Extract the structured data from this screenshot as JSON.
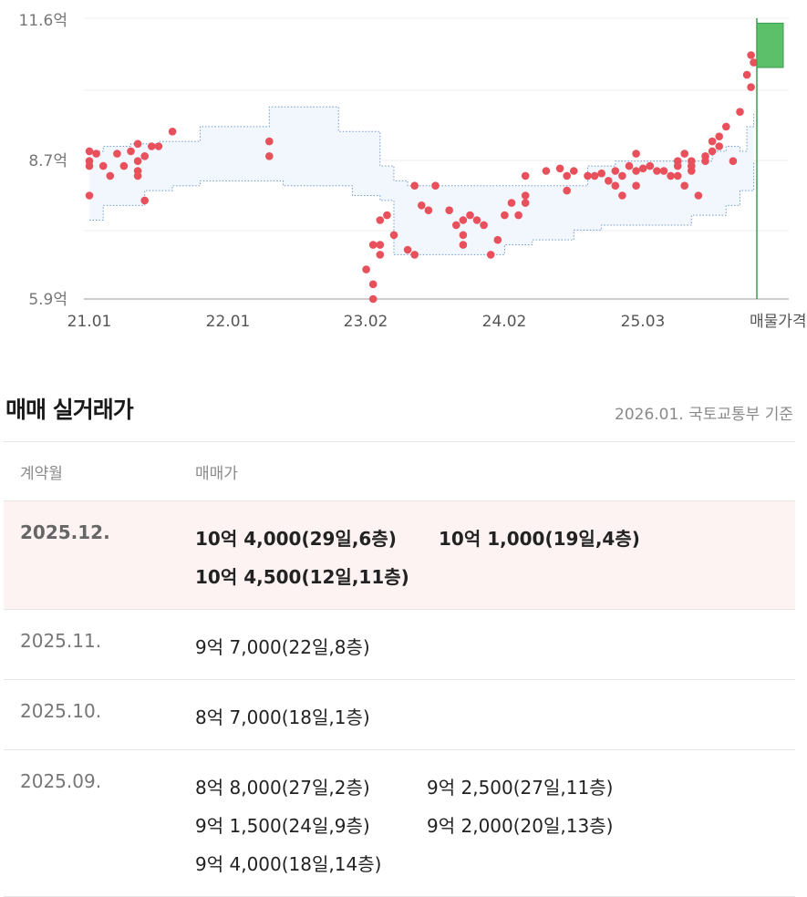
{
  "chart_data": {
    "type": "scatter",
    "y_ticks": [
      "11.6억",
      "8.7억",
      "5.9억"
    ],
    "x_ticks": [
      "21.01",
      "22.01",
      "23.02",
      "24.02",
      "25.03",
      "매물가격"
    ],
    "ylim": [
      5.9,
      11.6
    ],
    "listing_price_range": [
      10.6,
      11.5
    ],
    "band_upper": [
      [
        21.0,
        8.9
      ],
      [
        21.1,
        9.0
      ],
      [
        21.3,
        9.05
      ],
      [
        21.5,
        9.1
      ],
      [
        21.8,
        9.4
      ],
      [
        22.1,
        9.4
      ],
      [
        22.3,
        9.8
      ],
      [
        22.7,
        9.8
      ],
      [
        22.8,
        9.3
      ],
      [
        23.0,
        9.3
      ],
      [
        23.1,
        8.6
      ],
      [
        23.2,
        8.3
      ],
      [
        23.3,
        8.2
      ],
      [
        23.4,
        8.2
      ],
      [
        23.6,
        8.2
      ],
      [
        23.9,
        8.2
      ],
      [
        24.0,
        8.2
      ],
      [
        24.2,
        8.2
      ],
      [
        24.4,
        8.2
      ],
      [
        24.6,
        8.6
      ],
      [
        24.8,
        8.7
      ],
      [
        25.0,
        8.7
      ],
      [
        25.3,
        8.7
      ],
      [
        25.5,
        8.9
      ],
      [
        25.6,
        9.0
      ],
      [
        25.7,
        8.9
      ],
      [
        25.75,
        9.4
      ],
      [
        25.8,
        9.7
      ]
    ],
    "band_lower": [
      [
        21.0,
        7.5
      ],
      [
        21.1,
        7.8
      ],
      [
        21.3,
        7.8
      ],
      [
        21.4,
        8.1
      ],
      [
        21.6,
        8.2
      ],
      [
        21.8,
        8.3
      ],
      [
        22.1,
        8.3
      ],
      [
        22.4,
        8.2
      ],
      [
        22.7,
        8.2
      ],
      [
        22.9,
        8.0
      ],
      [
        23.1,
        7.9
      ],
      [
        23.2,
        6.8
      ],
      [
        23.4,
        6.8
      ],
      [
        23.6,
        6.8
      ],
      [
        23.9,
        6.8
      ],
      [
        24.0,
        7.0
      ],
      [
        24.2,
        7.1
      ],
      [
        24.4,
        7.1
      ],
      [
        24.5,
        7.3
      ],
      [
        24.7,
        7.4
      ],
      [
        25.0,
        7.4
      ],
      [
        25.3,
        7.4
      ],
      [
        25.35,
        7.6
      ],
      [
        25.6,
        7.8
      ],
      [
        25.7,
        8.1
      ],
      [
        25.8,
        8.7
      ]
    ],
    "points": [
      [
        21.0,
        8.9
      ],
      [
        21.0,
        8.7
      ],
      [
        21.0,
        8.6
      ],
      [
        21.0,
        8.0
      ],
      [
        21.05,
        8.85
      ],
      [
        21.1,
        8.6
      ],
      [
        21.15,
        8.4
      ],
      [
        21.2,
        8.85
      ],
      [
        21.25,
        8.6
      ],
      [
        21.3,
        8.9
      ],
      [
        21.35,
        8.7
      ],
      [
        21.35,
        8.5
      ],
      [
        21.35,
        8.4
      ],
      [
        21.35,
        9.05
      ],
      [
        21.4,
        8.8
      ],
      [
        21.4,
        7.9
      ],
      [
        21.45,
        9.0
      ],
      [
        21.5,
        9.0
      ],
      [
        21.6,
        9.3
      ],
      [
        22.3,
        9.1
      ],
      [
        22.3,
        8.8
      ],
      [
        23.0,
        6.5
      ],
      [
        23.05,
        7.0
      ],
      [
        23.05,
        6.2
      ],
      [
        23.05,
        5.9
      ],
      [
        23.1,
        7.5
      ],
      [
        23.1,
        7.0
      ],
      [
        23.1,
        6.8
      ],
      [
        23.15,
        7.6
      ],
      [
        23.2,
        7.2
      ],
      [
        23.3,
        6.9
      ],
      [
        23.35,
        8.2
      ],
      [
        23.35,
        6.8
      ],
      [
        23.4,
        7.8
      ],
      [
        23.45,
        7.7
      ],
      [
        23.5,
        8.2
      ],
      [
        23.6,
        7.7
      ],
      [
        23.65,
        7.4
      ],
      [
        23.7,
        7.2
      ],
      [
        23.7,
        7.0
      ],
      [
        23.7,
        7.5
      ],
      [
        23.75,
        7.6
      ],
      [
        23.8,
        7.5
      ],
      [
        23.85,
        7.4
      ],
      [
        23.9,
        6.8
      ],
      [
        23.95,
        7.1
      ],
      [
        24.0,
        7.6
      ],
      [
        24.05,
        7.85
      ],
      [
        24.1,
        7.6
      ],
      [
        24.15,
        7.85
      ],
      [
        24.15,
        8.0
      ],
      [
        24.15,
        8.4
      ],
      [
        24.3,
        8.5
      ],
      [
        24.4,
        8.55
      ],
      [
        24.45,
        8.4
      ],
      [
        24.45,
        8.1
      ],
      [
        24.5,
        8.5
      ],
      [
        24.6,
        8.4
      ],
      [
        24.65,
        8.4
      ],
      [
        24.7,
        8.45
      ],
      [
        24.75,
        8.3
      ],
      [
        24.8,
        8.2
      ],
      [
        24.8,
        8.5
      ],
      [
        24.85,
        8.4
      ],
      [
        24.85,
        8.0
      ],
      [
        24.9,
        8.6
      ],
      [
        24.95,
        8.85
      ],
      [
        24.95,
        8.5
      ],
      [
        24.95,
        8.2
      ],
      [
        25.0,
        8.55
      ],
      [
        25.05,
        8.6
      ],
      [
        25.1,
        8.5
      ],
      [
        25.15,
        8.5
      ],
      [
        25.2,
        8.4
      ],
      [
        25.25,
        8.7
      ],
      [
        25.25,
        8.6
      ],
      [
        25.25,
        8.4
      ],
      [
        25.3,
        8.2
      ],
      [
        25.3,
        8.85
      ],
      [
        25.35,
        8.7
      ],
      [
        25.35,
        8.6
      ],
      [
        25.35,
        8.5
      ],
      [
        25.4,
        8.0
      ],
      [
        25.45,
        8.8
      ],
      [
        25.45,
        8.7
      ],
      [
        25.5,
        8.9
      ],
      [
        25.5,
        9.1
      ],
      [
        25.55,
        9.2
      ],
      [
        25.55,
        9.0
      ],
      [
        25.6,
        9.4
      ],
      [
        25.65,
        8.7
      ],
      [
        25.7,
        9.7
      ],
      [
        25.75,
        10.45
      ],
      [
        25.78,
        10.2
      ],
      [
        25.78,
        10.85
      ],
      [
        25.8,
        10.7
      ]
    ]
  },
  "section": {
    "title": "매매 실거래가",
    "source": "2026.01. 국토교통부 기준"
  },
  "table": {
    "col_month": "계약월",
    "col_price": "매매가",
    "rows": [
      {
        "month": "2025.12.",
        "prices": [
          "10억 4,000(29일,6층)",
          "10억 1,000(19일,4층)",
          "10억 4,500(12일,11층)"
        ],
        "highlight": true
      },
      {
        "month": "2025.11.",
        "prices": [
          "9억 7,000(22일,8층)"
        ]
      },
      {
        "month": "2025.10.",
        "prices": [
          "8억 7,000(18일,1층)"
        ]
      },
      {
        "month": "2025.09.",
        "prices": [
          "8억 8,000(27일,2층)",
          "9억 2,500(27일,11층)",
          "9억 1,500(24일,9층)",
          "9억 2,000(20일,13층)",
          "9억 4,000(18일,14층)"
        ]
      }
    ]
  },
  "colors": {
    "point": "#e8505b",
    "band_fill": "#f2f6fd",
    "band_stroke": "#6f9bd1",
    "listing": "#5cbf6a",
    "listing_stroke": "#3f9a4d"
  }
}
